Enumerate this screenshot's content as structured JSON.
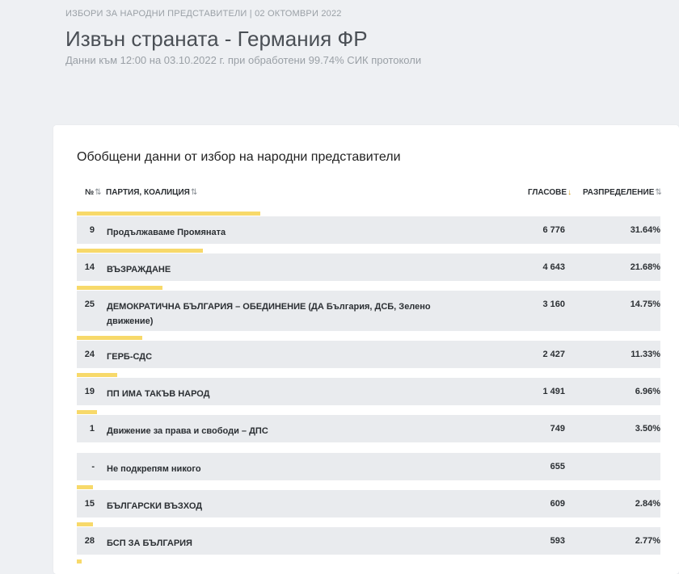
{
  "header": {
    "breadcrumb": "ИЗБОРИ ЗА НАРОДНИ ПРЕДСТАВИТЕЛИ | 02 ОКТОМВРИ 2022",
    "title": "Извън страната - Германия ФР",
    "subtitle": "Данни към 12:00 на 03.10.2022 г. при обработени 99.74% СИК протоколи"
  },
  "card": {
    "title": "Обобщени данни от избор на народни представители",
    "columns": {
      "no": "№",
      "party": "ПАРТИЯ, КОАЛИЦИЯ",
      "votes": "ГЛАСОВЕ",
      "distribution": "РАЗПРЕДЕЛЕНИЕ"
    },
    "sort_icons": {
      "no": "⇅",
      "party": "⇅",
      "votes": "↓",
      "distribution": "⇅"
    }
  },
  "rows": [
    {
      "no": "9",
      "name": "Продължаваме Промяната",
      "votes": "6 776",
      "dist": "31.64%",
      "share": 31.64
    },
    {
      "no": "14",
      "name": "ВЪЗРАЖДАНЕ",
      "votes": "4 643",
      "dist": "21.68%",
      "share": 21.68
    },
    {
      "no": "25",
      "name": "ДЕМОКРАТИЧНА БЪЛГАРИЯ – ОБЕДИНЕНИЕ (ДА България, ДСБ, Зелено движение)",
      "votes": "3 160",
      "dist": "14.75%",
      "share": 14.75
    },
    {
      "no": "24",
      "name": "ГЕРБ-СДС",
      "votes": "2 427",
      "dist": "11.33%",
      "share": 11.33
    },
    {
      "no": "19",
      "name": "ПП ИМА ТАКЪВ НАРОД",
      "votes": "1 491",
      "dist": "6.96%",
      "share": 6.96
    },
    {
      "no": "1",
      "name": "Движение за права и свободи – ДПС",
      "votes": "749",
      "dist": "3.50%",
      "share": 3.5
    },
    {
      "no": "-",
      "name": "Не подкрепям никого",
      "votes": "655",
      "dist": "",
      "share": 0
    },
    {
      "no": "15",
      "name": "БЪЛГАРСКИ ВЪЗХОД",
      "votes": "609",
      "dist": "2.84%",
      "share": 2.84
    },
    {
      "no": "28",
      "name": "БСП ЗА БЪЛГАРИЯ",
      "votes": "593",
      "dist": "2.77%",
      "share": 2.77
    },
    {
      "no": "",
      "name": "",
      "votes": "",
      "dist": "",
      "share": 0.8
    }
  ],
  "colors": {
    "bar": "#f7d96a",
    "row_bg": "#e9ebee",
    "page_bg": "#eef0f3"
  }
}
